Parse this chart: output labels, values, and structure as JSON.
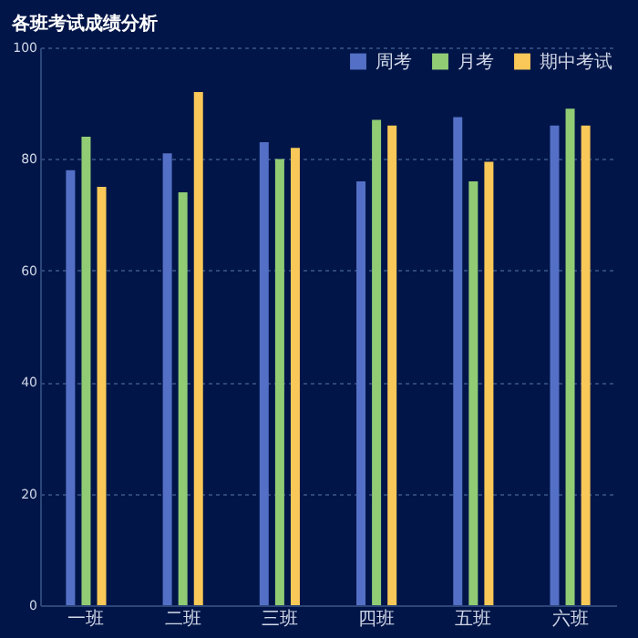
{
  "chart_data": {
    "type": "bar",
    "title": "各班考试成绩分析",
    "categories": [
      "一班",
      "二班",
      "三班",
      "四班",
      "五班",
      "六班"
    ],
    "series": [
      {
        "name": "周考",
        "color": "#5470c6",
        "values": [
          78,
          81,
          83,
          76,
          87.5,
          86
        ]
      },
      {
        "name": "月考",
        "color": "#91cc75",
        "values": [
          84,
          74,
          80,
          87,
          76,
          89
        ]
      },
      {
        "name": "期中考试",
        "color": "#fac858",
        "values": [
          75,
          92,
          82,
          86,
          79.5,
          86
        ]
      }
    ],
    "ylim": [
      0,
      100
    ],
    "yticks": [
      0,
      20,
      40,
      60,
      80,
      100
    ],
    "grid": "y",
    "legend": "top right"
  }
}
